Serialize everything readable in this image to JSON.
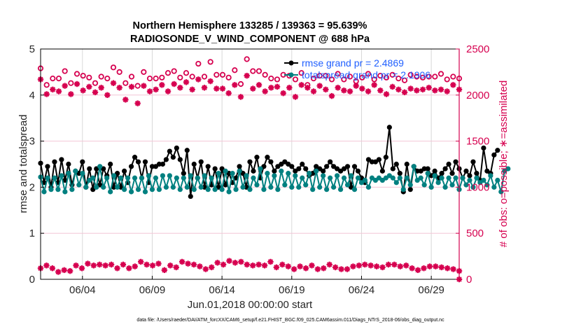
{
  "chart_data": {
    "type": "line",
    "title": [
      "Northern Hemisphere 133285 / 139363 = 95.639%",
      "RADIOSONDE_V_WIND_COMPONENT @ 688 hPa"
    ],
    "xlabel": "Jun.01,2018 00:00:00 start",
    "ylabel_left": "rmse and totalspread",
    "ylabel_right": "# of obs: o=possible; ∗=assimilated",
    "footnote": "data file: /Users/raeder/DAI/ATM_forcXX/CAM6_setup/f.e21.FHIST_BGC.f09_025.CAM6assim.011/Diags_NTrS_2018-06/obs_diag_output.nc",
    "xlim_days": [
      1.0,
      31.0
    ],
    "x_ticks": [
      {
        "day": 4,
        "label": "06/04"
      },
      {
        "day": 9,
        "label": "06/09"
      },
      {
        "day": 14,
        "label": "06/14"
      },
      {
        "day": 19,
        "label": "06/19"
      },
      {
        "day": 24,
        "label": "06/24"
      },
      {
        "day": 29,
        "label": "06/29"
      }
    ],
    "ylim_left": [
      0,
      5
    ],
    "yticks_left": [
      "0",
      "1",
      "2",
      "3",
      "4",
      "5"
    ],
    "ylim_right": [
      0,
      2500
    ],
    "yticks_right": [
      "0",
      "500",
      "1000",
      "1500",
      "2000",
      "2500"
    ],
    "grid": true,
    "legend_position": "top-right",
    "legend": [
      {
        "label": "rmse grand pr = 2.4869",
        "color": "#000000"
      },
      {
        "label": "totalspread grand pr = 2.1906",
        "color": "#008080"
      }
    ],
    "colors": {
      "rmse": "#000000",
      "totalspread": "#008080",
      "obs": "#d6004f",
      "legend_text": "#1f5fff",
      "right_axis": "#d6004f"
    },
    "x_start_day": 1.0,
    "x_step_days": 0.25,
    "series": [
      {
        "name": "rmse",
        "axis": "left",
        "marker": "filled-circle",
        "values": [
          2.52,
          2.1,
          2.45,
          2.0,
          2.55,
          2.1,
          2.6,
          2.15,
          2.5,
          2.05,
          2.35,
          2.3,
          2.55,
          2.0,
          2.4,
          1.95,
          2.4,
          2.05,
          2.4,
          2.25,
          2.5,
          2.0,
          2.3,
          2.0,
          2.35,
          2.1,
          2.45,
          2.65,
          2.55,
          2.2,
          2.55,
          2.1,
          2.45,
          2.45,
          2.5,
          2.5,
          2.6,
          2.78,
          2.65,
          2.85,
          2.6,
          2.3,
          2.8,
          1.8,
          2.5,
          2.2,
          2.55,
          2.0,
          2.45,
          2.05,
          2.4,
          2.0,
          2.4,
          2.05,
          2.3,
          2.1,
          2.2,
          2.45,
          2.3,
          2.0,
          2.55,
          2.35,
          2.65,
          2.2,
          2.45,
          2.65,
          2.55,
          2.35,
          2.45,
          2.5,
          2.55,
          2.5,
          2.45,
          2.35,
          2.4,
          2.5,
          2.4,
          2.25,
          2.3,
          2.45,
          2.4,
          2.35,
          2.45,
          2.55,
          2.45,
          2.4,
          2.35,
          2.4,
          2.45,
          2.0,
          2.45,
          2.35,
          2.2,
          2.1,
          2.6,
          2.55,
          2.55,
          2.6,
          2.35,
          2.65,
          3.3,
          2.4,
          2.5,
          2.3,
          1.9,
          2.5,
          1.95,
          2.45,
          2.35,
          2.35,
          2.4,
          2.4,
          2.25,
          2.35,
          2.2,
          2.3,
          2.4,
          2.5,
          2.3,
          2.55,
          2.4,
          2.2,
          2.35,
          2.25,
          2.55,
          2.3,
          2.15,
          2.85,
          2.35,
          2.3,
          2.7,
          2.8
        ]
      },
      {
        "name": "totalspread",
        "axis": "left",
        "marker": "filled-circle",
        "values": [
          2.22,
          1.9,
          2.2,
          1.95,
          2.2,
          1.95,
          2.25,
          1.9,
          2.3,
          1.95,
          2.35,
          2.05,
          2.3,
          2.0,
          2.15,
          2.2,
          2.0,
          2.45,
          2.0,
          2.2,
          1.9,
          2.25,
          2.0,
          2.2,
          1.95,
          2.2,
          1.9,
          2.2,
          1.95,
          2.2,
          1.9,
          2.25,
          1.95,
          2.2,
          1.95,
          2.25,
          2.0,
          2.25,
          2.0,
          2.2,
          1.95,
          2.2,
          2.0,
          2.25,
          1.95,
          2.2,
          2.0,
          2.25,
          1.95,
          2.2,
          1.95,
          2.3,
          1.95,
          2.35,
          1.9,
          2.3,
          1.95,
          2.35,
          2.0,
          2.25,
          1.95,
          2.2,
          2.05,
          2.4,
          1.95,
          2.3,
          2.0,
          2.25,
          1.95,
          2.35,
          2.05,
          2.3,
          2.0,
          2.25,
          2.0,
          2.2,
          2.05,
          2.3,
          1.95,
          2.35,
          2.0,
          2.25,
          1.95,
          2.2,
          2.0,
          2.25,
          1.95,
          2.2,
          2.05,
          2.25,
          1.95,
          2.2,
          2.1,
          2.15,
          2.0,
          2.2,
          2.15,
          2.2,
          2.15,
          2.2,
          2.25,
          2.2,
          2.1,
          2.2,
          1.95,
          2.2,
          2.05,
          2.45,
          2.15,
          2.2,
          2.05,
          2.3,
          2.0,
          2.25,
          2.1,
          2.2,
          2.0,
          2.2,
          2.05,
          2.2,
          1.95,
          2.2,
          2.05,
          2.15,
          2.0,
          2.2,
          2.1,
          2.15,
          2.05,
          2.25,
          2.0,
          2.15,
          1.9,
          2.35,
          2.4
        ]
      },
      {
        "name": "obs_possible",
        "axis": "right",
        "marker": "open-circle",
        "values": [
          2290,
          2110,
          2180,
          2180,
          2260,
          2130,
          2230,
          2210,
          2190,
          2130,
          2200,
          2180,
          2300,
          2250,
          2130,
          2200,
          2100,
          2250,
          2180,
          2180,
          2190,
          2240,
          2260,
          2190,
          2240,
          2200,
          2340,
          2200,
          2360,
          2220,
          2220,
          2190,
          2270,
          2120,
          2390,
          2260,
          2260,
          2220,
          2180,
          2170,
          2220,
          2210,
          2170,
          2240,
          2110,
          2180,
          2210,
          2210,
          2170,
          2230,
          2170,
          2200,
          2150,
          2190,
          2230,
          2170,
          2210,
          2190,
          2220,
          2180,
          2160,
          2220,
          2200,
          2190,
          2200,
          2200,
          2230,
          2170,
          2200,
          2180
        ]
      },
      {
        "name": "obs_assimilated",
        "axis": "right",
        "marker": "asterisk",
        "values": [
          2170,
          2010,
          2060,
          2040,
          2100,
          2010,
          2120,
          2050,
          2090,
          2030,
          2080,
          2000,
          2130,
          2080,
          1950,
          2090,
          1910,
          2100,
          2040,
          2060,
          2110,
          2040,
          2120,
          2080,
          2140,
          2060,
          2170,
          2080,
          2150,
          2070,
          2070,
          2020,
          2110,
          1980,
          2210,
          2070,
          2110,
          2040,
          2080,
          2090,
          2020,
          2080,
          1980,
          2110,
          2080,
          2040,
          2100,
          2060,
          1990,
          2080,
          2050,
          2040,
          2100,
          2070,
          2040,
          2110,
          2050,
          2010,
          2090,
          2060,
          2030,
          2070,
          2050,
          2060,
          2080,
          2050,
          2060,
          2040,
          2110,
          2060
        ]
      },
      {
        "name": "obs_assimilated_low",
        "axis": "right",
        "marker": "asterisk",
        "values": [
          120,
          150,
          120,
          80,
          100,
          90,
          150,
          120,
          170,
          150,
          160,
          150,
          160,
          120,
          160,
          120,
          140,
          190,
          160,
          150,
          170,
          100,
          150,
          130,
          190,
          170,
          160,
          140,
          110,
          130,
          180,
          160,
          200,
          180,
          190,
          160,
          150,
          160,
          150,
          190,
          130,
          160,
          140,
          110,
          140,
          120,
          150,
          110,
          120,
          160,
          130,
          110,
          110,
          140,
          150,
          160,
          150,
          140,
          130,
          160,
          160,
          140,
          150,
          120,
          100,
          120,
          140,
          140,
          130,
          120,
          110,
          90
        ]
      }
    ]
  }
}
